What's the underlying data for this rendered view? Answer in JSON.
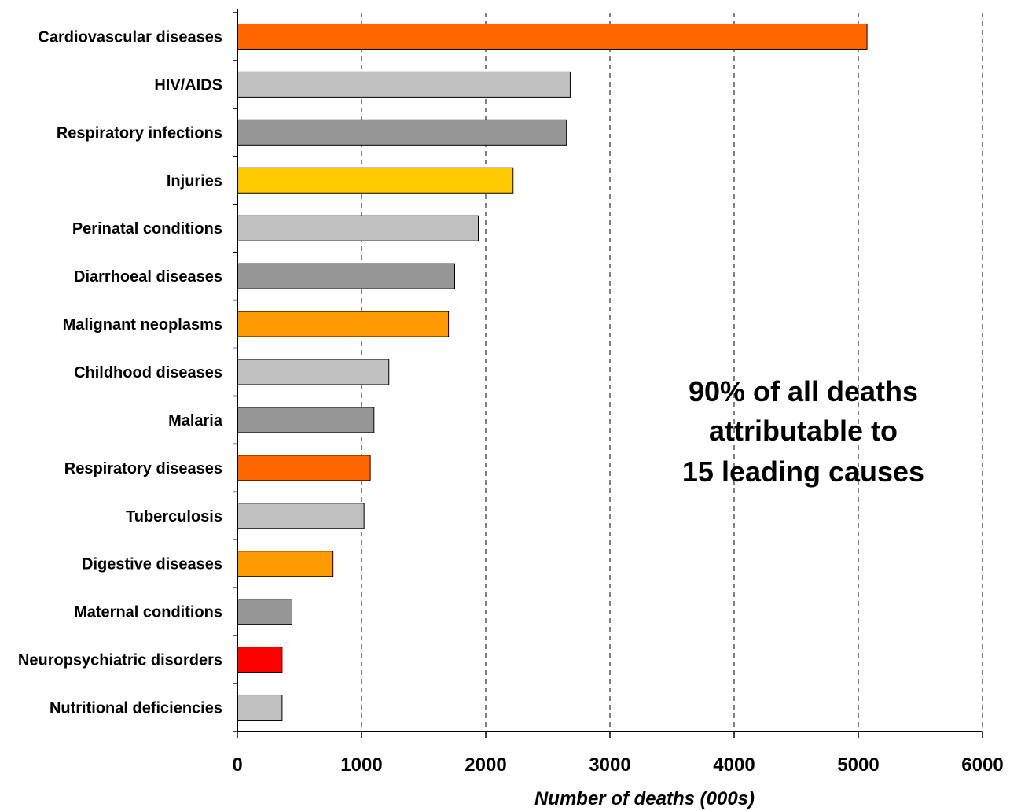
{
  "chart_data": {
    "type": "bar",
    "orientation": "horizontal",
    "categories": [
      "Cardiovascular diseases",
      "HIV/AIDS",
      "Respiratory infections",
      "Injuries",
      "Perinatal conditions",
      "Diarrhoeal diseases",
      "Malignant neoplasms",
      "Childhood diseases",
      "Malaria",
      "Respiratory diseases",
      "Tuberculosis",
      "Digestive diseases",
      "Maternal conditions",
      "Neuropsychiatric disorders",
      "Nutritional deficiencies"
    ],
    "values": [
      5070,
      2680,
      2650,
      2220,
      1940,
      1750,
      1700,
      1220,
      1100,
      1070,
      1020,
      770,
      440,
      360,
      360
    ],
    "colors": [
      "#ff6600",
      "#c0c0c0",
      "#969696",
      "#ffcc00",
      "#c0c0c0",
      "#969696",
      "#ff9900",
      "#c0c0c0",
      "#969696",
      "#ff6600",
      "#c0c0c0",
      "#ff9900",
      "#969696",
      "#ff0000",
      "#c0c0c0"
    ],
    "xlabel": "Number of deaths (000s)",
    "xlim": [
      0,
      6000
    ],
    "xticks": [
      "0",
      "1000",
      "2000",
      "3000",
      "4000",
      "5000",
      "6000"
    ],
    "grid": "vertical dashed",
    "annotation": [
      "90% of all deaths",
      "attributable to",
      "15 leading causes"
    ]
  }
}
